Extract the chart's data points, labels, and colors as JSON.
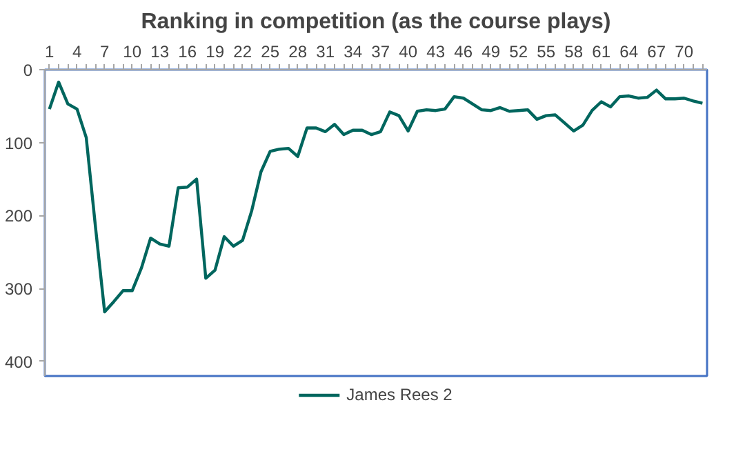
{
  "chart_data": {
    "type": "line",
    "title": "Ranking in competition (as the course plays)",
    "x": [
      1,
      2,
      3,
      4,
      5,
      6,
      7,
      8,
      9,
      10,
      11,
      12,
      13,
      14,
      15,
      16,
      17,
      18,
      19,
      20,
      21,
      22,
      23,
      24,
      25,
      26,
      27,
      28,
      29,
      30,
      31,
      32,
      33,
      34,
      35,
      36,
      37,
      38,
      39,
      40,
      41,
      42,
      43,
      44,
      45,
      46,
      47,
      48,
      49,
      50,
      51,
      52,
      53,
      54,
      55,
      56,
      57,
      58,
      59,
      60,
      61,
      62,
      63,
      64,
      65,
      66,
      67,
      68,
      69,
      70,
      71,
      72
    ],
    "series": [
      {
        "name": "James Rees 2",
        "color": "#00665e",
        "values": [
          54,
          17,
          47,
          54,
          93,
          215,
          332,
          318,
          303,
          303,
          272,
          231,
          239,
          242,
          162,
          161,
          150,
          286,
          275,
          229,
          242,
          234,
          193,
          140,
          112,
          109,
          108,
          119,
          80,
          80,
          85,
          75,
          89,
          83,
          83,
          89,
          85,
          58,
          63,
          84,
          57,
          55,
          56,
          54,
          37,
          39,
          47,
          55,
          56,
          52,
          57,
          56,
          55,
          68,
          63,
          62,
          73,
          84,
          76,
          56,
          44,
          51,
          37,
          36,
          39,
          38,
          28,
          40,
          40,
          39,
          43,
          46
        ]
      }
    ],
    "xlim": [
      0.5,
      72.5
    ],
    "xticks": [
      1,
      4,
      7,
      10,
      13,
      16,
      19,
      22,
      25,
      28,
      31,
      34,
      37,
      40,
      43,
      46,
      49,
      52,
      55,
      58,
      61,
      64,
      67,
      70
    ],
    "ylim": [
      420,
      0
    ],
    "yticks": [
      0,
      100,
      200,
      300,
      400
    ],
    "grid": false,
    "legend": "bottom",
    "marker": "none",
    "line_style": "solid"
  }
}
